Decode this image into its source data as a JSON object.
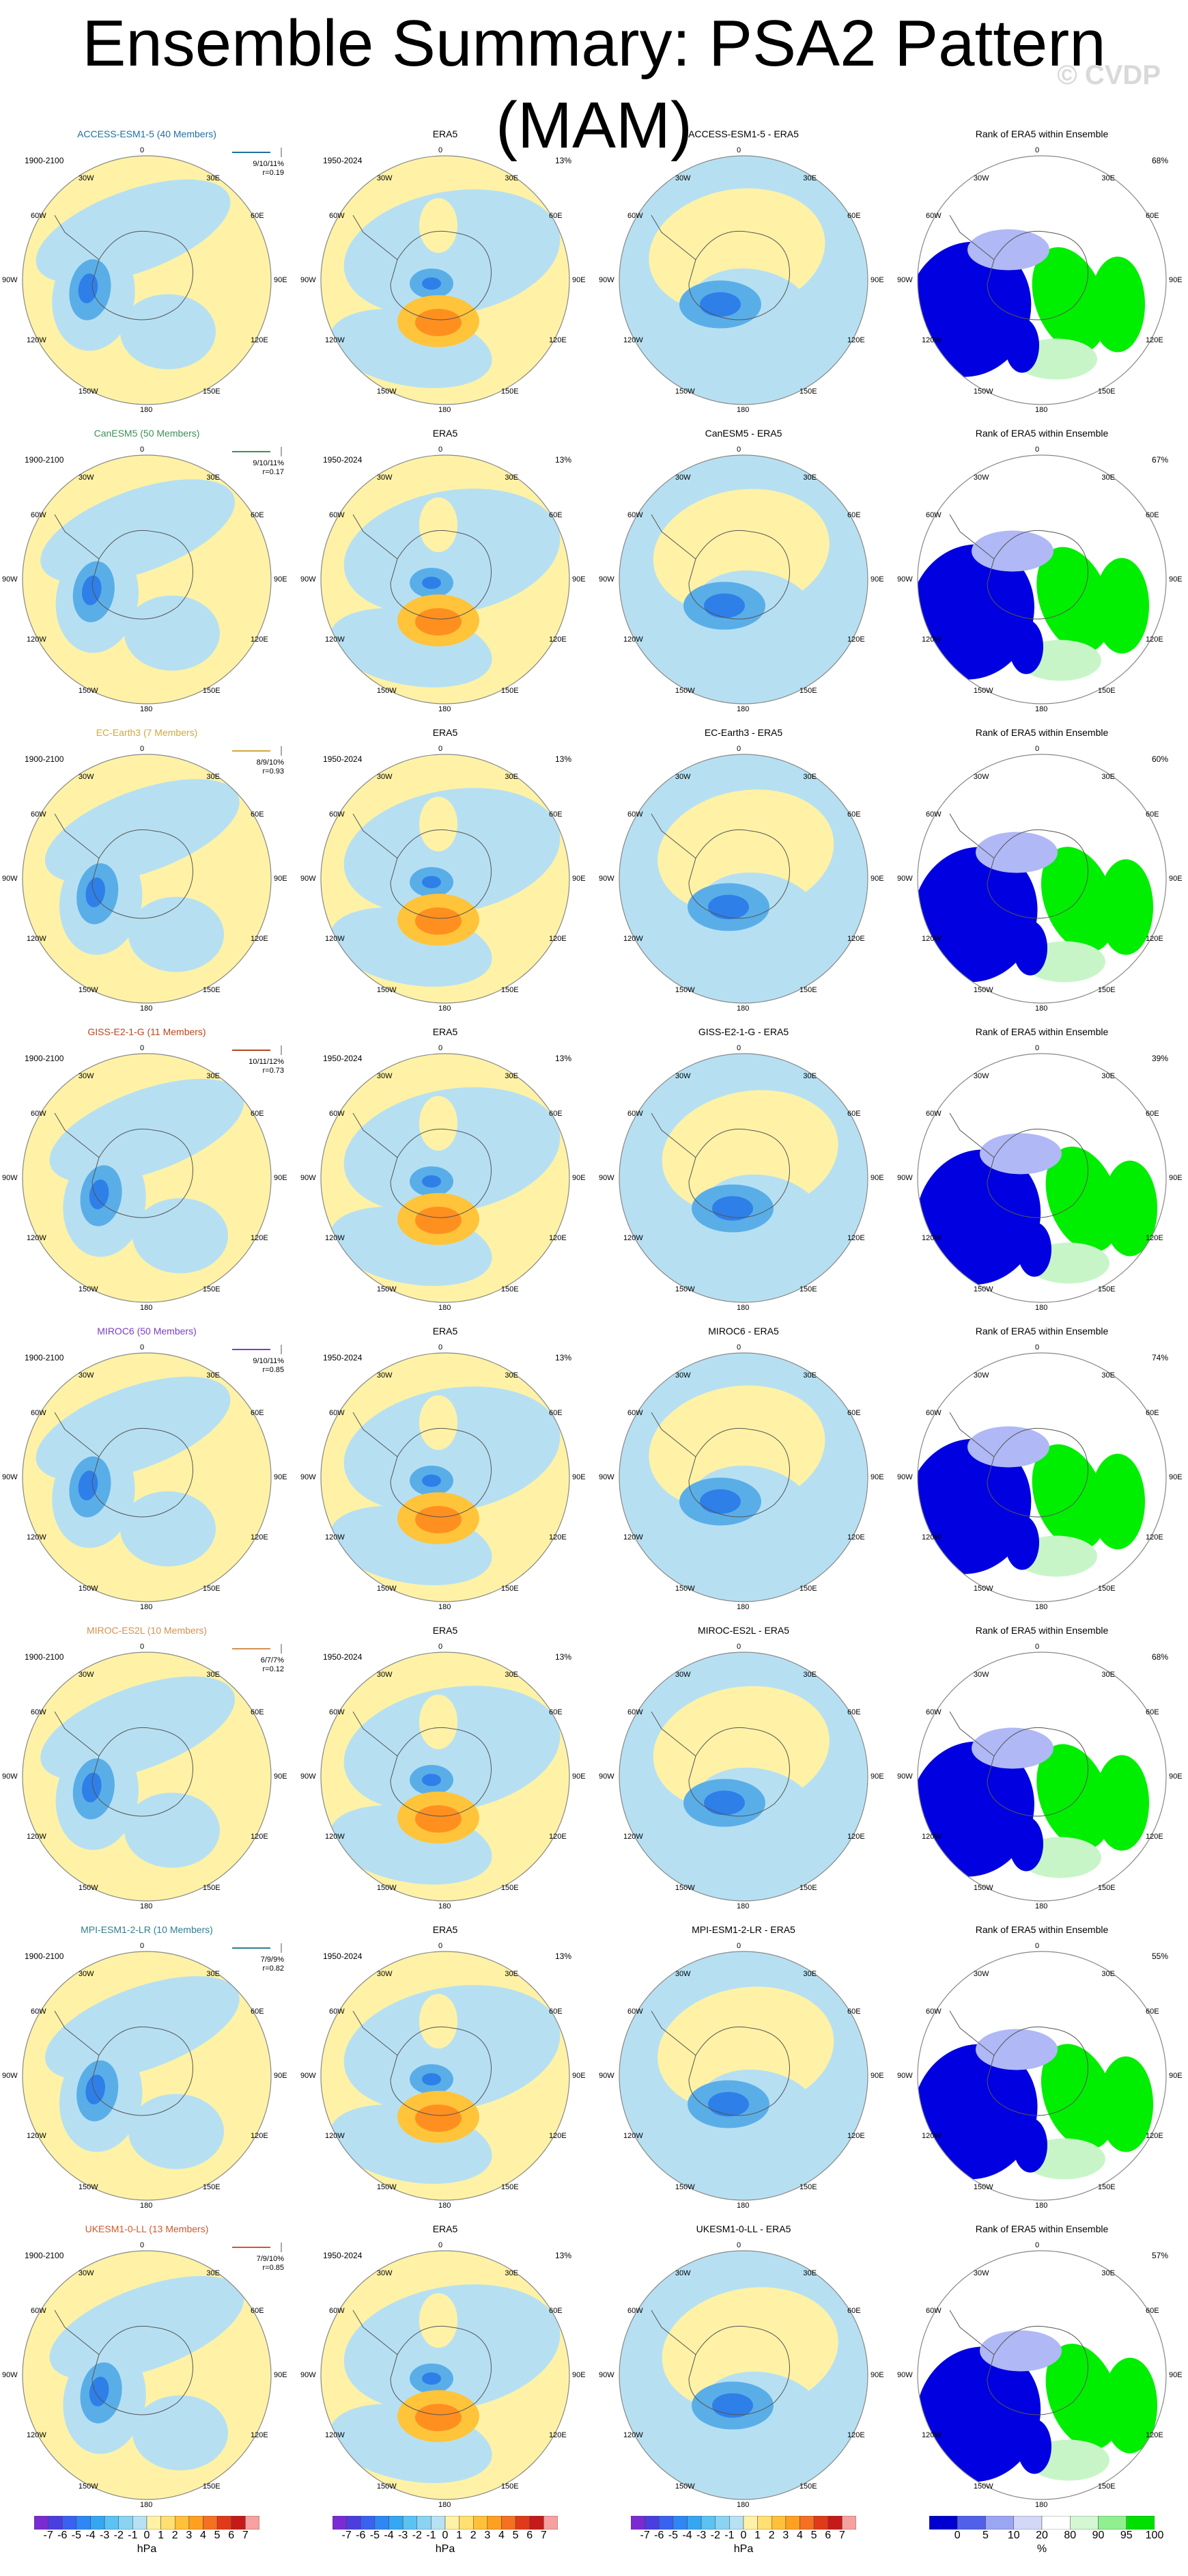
{
  "title": "Ensemble Summary: PSA2 Pattern (MAM)",
  "watermark": "© CVDP",
  "column_titles": {
    "era5": "ERA5",
    "rank": "Rank of ERA5 within Ensemble"
  },
  "periods": {
    "model": "1900-2100",
    "obs": "1950-2024"
  },
  "era5_pct": "13%",
  "map_labels": {
    "top": "0",
    "bottom": "180",
    "left": "90W",
    "right": "90E",
    "upper_left": "60W",
    "upper_right": "60E",
    "top_left": "30W",
    "top_right": "30E",
    "lower_left": "120W",
    "lower_right": "120E",
    "bottom_left": "150W",
    "bottom_right": "150E"
  },
  "rows": [
    {
      "model": "ACCESS-ESM1-5 (40 Members)",
      "color": "#1f6fa3",
      "stats": "9/10/11%",
      "r": "r=0.19",
      "diff": "ACCESS-ESM1-5 - ERA5",
      "rank_pct": "68%"
    },
    {
      "model": "CanESM5 (50 Members)",
      "color": "#3f8f58",
      "stats": "9/10/11%",
      "r": "r=0.17",
      "diff": "CanESM5 - ERA5",
      "rank_pct": "67%"
    },
    {
      "model": "EC-Earth3 (7 Members)",
      "color": "#d4a83a",
      "stats": "8/9/10%",
      "r": "r=0.93",
      "diff": "EC-Earth3 - ERA5",
      "rank_pct": "60%"
    },
    {
      "model": "GISS-E2-1-G (11 Members)",
      "color": "#b5471f",
      "stats": "10/11/12%",
      "r": "r=0.73",
      "diff": "GISS-E2-1-G - ERA5",
      "rank_pct": "39%"
    },
    {
      "model": "MIROC6 (50 Members)",
      "color": "#7a3fc4",
      "stats": "9/10/11%",
      "r": "r=0.85",
      "diff": "MIROC6 - ERA5",
      "rank_pct": "74%"
    },
    {
      "model": "MIROC-ES2L (10 Members)",
      "color": "#d49150",
      "stats": "6/7/7%",
      "r": "r=0.12",
      "diff": "MIROC-ES2L - ERA5",
      "rank_pct": "68%"
    },
    {
      "model": "MPI-ESM1-2-LR (10 Members)",
      "color": "#2f7f8f",
      "stats": "7/9/9%",
      "r": "r=0.82",
      "diff": "MPI-ESM1-2-LR - ERA5",
      "rank_pct": "55%"
    },
    {
      "model": "UKESM1-0-LL (13 Members)",
      "color": "#d4582a",
      "stats": "7/9/10%",
      "r": "r=0.85",
      "diff": "UKESM1-0-LL - ERA5",
      "rank_pct": "57%"
    }
  ],
  "colorbars": {
    "hpa_ticks": [
      "-7",
      "-6",
      "-5",
      "-4",
      "-3",
      "-2",
      "-1",
      "0",
      "1",
      "2",
      "3",
      "4",
      "5",
      "6",
      "7"
    ],
    "hpa_unit": "hPa",
    "hpa_colors": [
      "#7a2bd1",
      "#4a3ee0",
      "#3a62f0",
      "#2f86f5",
      "#35a7f2",
      "#5cc2f2",
      "#8ad3f2",
      "#b6e2f4",
      "#fff2a6",
      "#ffe070",
      "#ffc03a",
      "#ffa020",
      "#f57020",
      "#e03a1a",
      "#c41a1a",
      "#f7a0a0"
    ],
    "pct_ticks": [
      "0",
      "5",
      "10",
      "20",
      "80",
      "90",
      "95",
      "100"
    ],
    "pct_unit": "%",
    "pct_colors": [
      "#0000d0",
      "#5060e8",
      "#9aa6f2",
      "#d4d8f8",
      "#ffffff",
      "#d4f8d4",
      "#90f090",
      "#00e000"
    ]
  },
  "palette": {
    "ocean_blue": "#b6e0f2",
    "yellow": "#fff2a6",
    "blue2": "#5aaee8",
    "blue3": "#2e7fe8",
    "orange1": "#ffc43a",
    "orange2": "#ff9020",
    "rank_blue": "#0000e0",
    "rank_green": "#00ee00",
    "rank_light_blue": "#b0b8f5",
    "rank_light_green": "#c8f5c8"
  }
}
